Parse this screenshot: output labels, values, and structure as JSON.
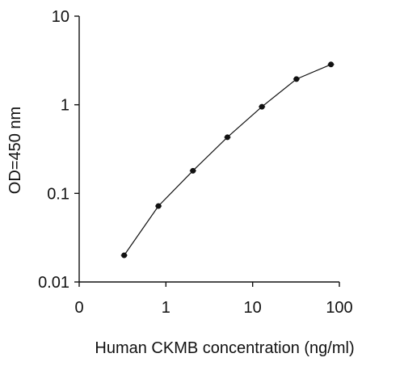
{
  "chart_data": {
    "type": "line",
    "xlabel": "Human CKMB concentration (ng/ml)",
    "ylabel": "OD=450 nm",
    "x_scale": "log",
    "y_scale": "log",
    "xlim": [
      0.1,
      100
    ],
    "ylim": [
      0.01,
      10
    ],
    "x_tick_labels": [
      "0",
      "1",
      "10",
      "100"
    ],
    "y_tick_labels": [
      "0.01",
      "0.1",
      "1",
      "10"
    ],
    "series": [
      {
        "x": [
          0.33,
          0.82,
          2.05,
          5.12,
          12.8,
          32,
          80
        ],
        "y": [
          0.02,
          0.072,
          0.18,
          0.43,
          0.95,
          1.95,
          2.85
        ]
      }
    ],
    "grid": false,
    "legend": "none",
    "marker_color": "#111111",
    "line_color": "#111111"
  }
}
